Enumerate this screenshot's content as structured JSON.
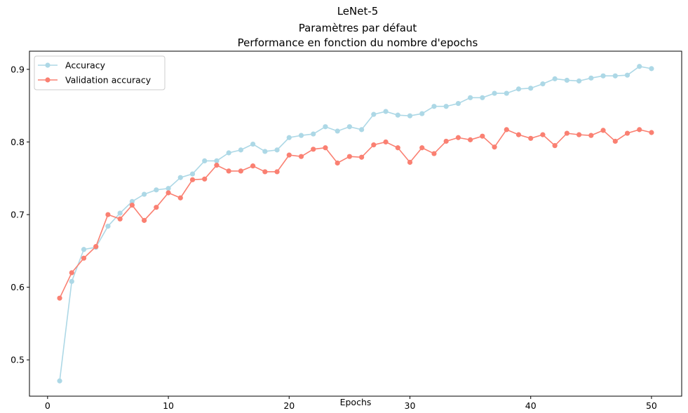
{
  "chart_data": {
    "type": "line",
    "title_lines": [
      "LeNet-5",
      "Paramètres par défaut",
      "Performance en fonction du nombre d'epochs"
    ],
    "xlabel": "Epochs",
    "ylabel": "",
    "xlim": [
      -1.5,
      52.5
    ],
    "ylim": [
      0.45,
      0.925
    ],
    "xticks": [
      0,
      10,
      20,
      30,
      40,
      50
    ],
    "yticks": [
      0.5,
      0.6,
      0.7,
      0.8,
      0.9
    ],
    "grid": false,
    "legend_position": "top-left",
    "x": [
      1,
      2,
      3,
      4,
      5,
      6,
      7,
      8,
      9,
      10,
      11,
      12,
      13,
      14,
      15,
      16,
      17,
      18,
      19,
      20,
      21,
      22,
      23,
      24,
      25,
      26,
      27,
      28,
      29,
      30,
      31,
      32,
      33,
      34,
      35,
      36,
      37,
      38,
      39,
      40,
      41,
      42,
      43,
      44,
      45,
      46,
      47,
      48,
      49,
      50
    ],
    "series": [
      {
        "name": "Accuracy",
        "color": "#add8e6",
        "values": [
          0.471,
          0.608,
          0.652,
          0.655,
          0.684,
          0.702,
          0.718,
          0.728,
          0.734,
          0.736,
          0.751,
          0.756,
          0.774,
          0.774,
          0.785,
          0.789,
          0.797,
          0.787,
          0.789,
          0.806,
          0.809,
          0.811,
          0.821,
          0.815,
          0.821,
          0.817,
          0.838,
          0.842,
          0.837,
          0.836,
          0.839,
          0.849,
          0.849,
          0.853,
          0.861,
          0.861,
          0.867,
          0.867,
          0.873,
          0.874,
          0.88,
          0.887,
          0.885,
          0.884,
          0.888,
          0.891,
          0.891,
          0.892,
          0.904,
          0.901
        ]
      },
      {
        "name": "Validation accuracy",
        "color": "#fa8072",
        "values": [
          0.585,
          0.62,
          0.64,
          0.656,
          0.7,
          0.694,
          0.713,
          0.692,
          0.71,
          0.73,
          0.723,
          0.748,
          0.749,
          0.768,
          0.76,
          0.76,
          0.767,
          0.759,
          0.759,
          0.782,
          0.78,
          0.79,
          0.792,
          0.771,
          0.78,
          0.779,
          0.796,
          0.8,
          0.792,
          0.772,
          0.792,
          0.784,
          0.801,
          0.806,
          0.803,
          0.808,
          0.793,
          0.817,
          0.81,
          0.805,
          0.81,
          0.795,
          0.812,
          0.81,
          0.809,
          0.816,
          0.801,
          0.812,
          0.817,
          0.813
        ]
      }
    ]
  }
}
